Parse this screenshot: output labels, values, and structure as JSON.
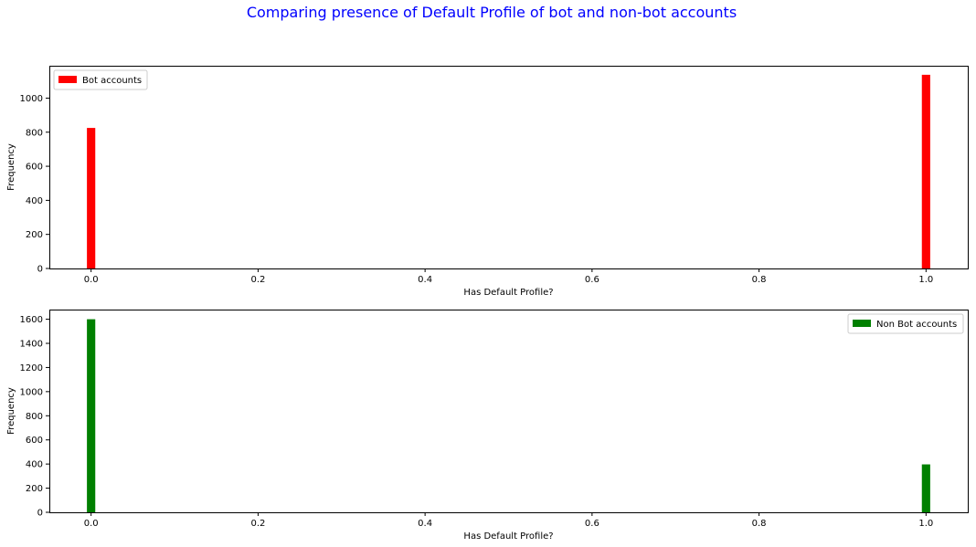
{
  "figure": {
    "title": "Comparing presence of Default Profile of bot and non-bot accounts",
    "title_color": "#0000ff"
  },
  "chart_data": [
    {
      "type": "bar",
      "title": "",
      "xlabel": "Has Default Profile?",
      "ylabel": "Frequency",
      "xlim": [
        -0.05,
        1.05
      ],
      "ylim": [
        0,
        1190
      ],
      "x_ticks": [
        0.0,
        0.2,
        0.4,
        0.6,
        0.8,
        1.0
      ],
      "x_tick_labels": [
        "0.0",
        "0.2",
        "0.4",
        "0.6",
        "0.8",
        "1.0"
      ],
      "y_ticks": [
        0,
        200,
        400,
        600,
        800,
        1000
      ],
      "y_tick_labels": [
        "0",
        "200",
        "400",
        "600",
        "800",
        "1000"
      ],
      "bar_width": 0.01,
      "legend_position": "upper-left",
      "grid": false,
      "series": [
        {
          "name": "Bot accounts",
          "color": "#ff0000",
          "x": [
            0.0,
            1.0
          ],
          "values": [
            825,
            1137
          ]
        }
      ]
    },
    {
      "type": "bar",
      "title": "",
      "xlabel": "Has Default Profile?",
      "ylabel": "Frequency",
      "xlim": [
        -0.05,
        1.05
      ],
      "ylim": [
        0,
        1680
      ],
      "x_ticks": [
        0.0,
        0.2,
        0.4,
        0.6,
        0.8,
        1.0
      ],
      "x_tick_labels": [
        "0.0",
        "0.2",
        "0.4",
        "0.6",
        "0.8",
        "1.0"
      ],
      "y_ticks": [
        0,
        200,
        400,
        600,
        800,
        1000,
        1200,
        1400,
        1600
      ],
      "y_tick_labels": [
        "0",
        "200",
        "400",
        "600",
        "800",
        "1000",
        "1200",
        "1400",
        "1600"
      ],
      "bar_width": 0.01,
      "legend_position": "upper-right",
      "grid": false,
      "series": [
        {
          "name": "Non Bot accounts",
          "color": "#008000",
          "x": [
            0.0,
            1.0
          ],
          "values": [
            1600,
            397
          ]
        }
      ]
    }
  ]
}
